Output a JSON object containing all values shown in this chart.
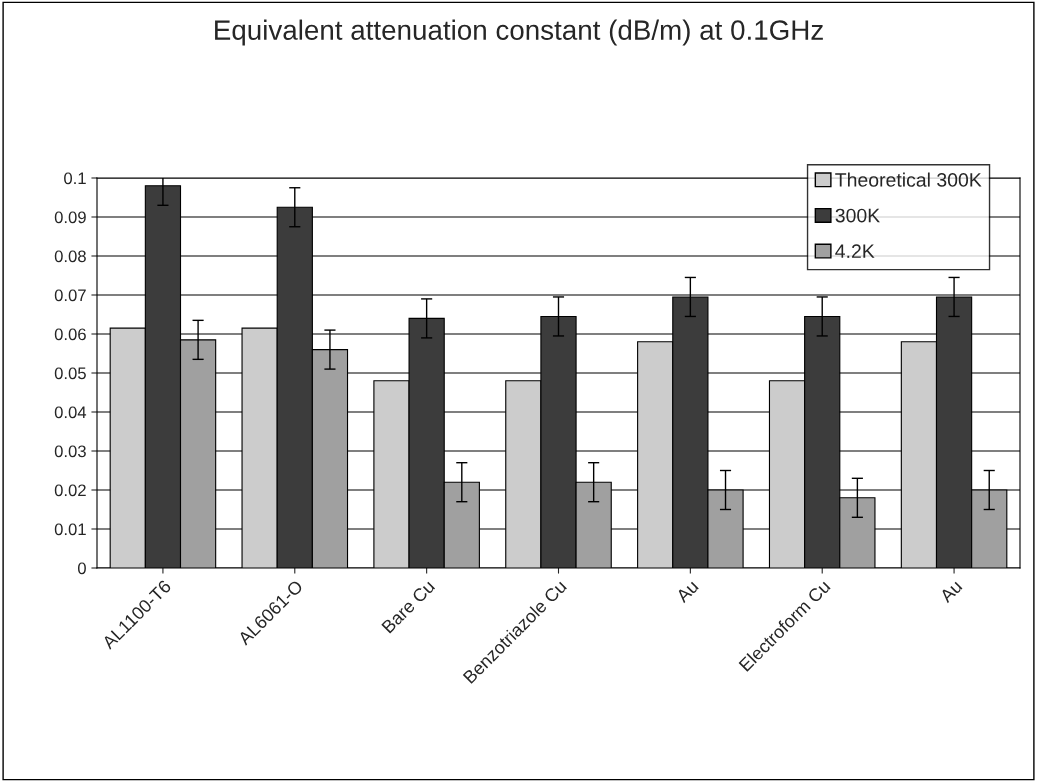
{
  "chart_data": {
    "type": "bar",
    "title": "Equivalent attenuation constant (dB/m) at 0.1GHz",
    "categories": [
      "AL1100-T6",
      "AL6061-O",
      "Bare Cu",
      "Benzotriazole Cu",
      "Au",
      "Electroform Cu",
      "Au"
    ],
    "series": [
      {
        "name": "Theoretical 300K",
        "color": "#cccccc",
        "values": [
          0.0615,
          0.0615,
          0.048,
          0.048,
          0.058,
          0.048,
          0.058
        ]
      },
      {
        "name": "300K",
        "color": "#3c3c3c",
        "values": [
          0.098,
          0.0925,
          0.064,
          0.0645,
          0.0695,
          0.0645,
          0.0695
        ],
        "errors": [
          0.005,
          0.005,
          0.005,
          0.005,
          0.005,
          0.005,
          0.005
        ]
      },
      {
        "name": "4.2K",
        "color": "#a0a0a0",
        "values": [
          0.0585,
          0.056,
          0.022,
          0.022,
          0.02,
          0.018,
          0.02
        ],
        "errors": [
          0.005,
          0.005,
          0.005,
          0.005,
          0.005,
          0.005,
          0.005
        ]
      }
    ],
    "ylim": [
      0,
      0.1
    ],
    "yticks": [
      0,
      0.01,
      0.02,
      0.03,
      0.04,
      0.05,
      0.06,
      0.07,
      0.08,
      0.09,
      0.1
    ],
    "grid": "y",
    "legend": "top right"
  }
}
